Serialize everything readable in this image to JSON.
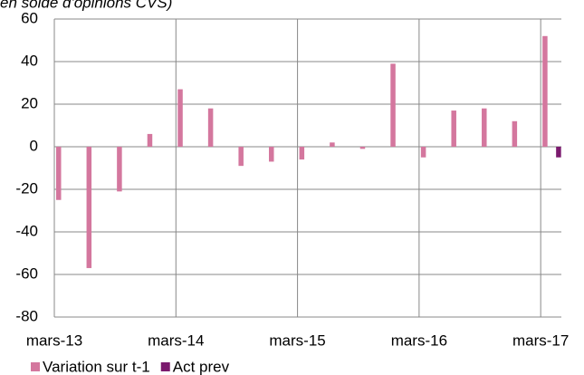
{
  "chart_data": {
    "type": "bar",
    "subtitle": "en solde d'opinions CVS)",
    "categories": [
      "mars-13",
      null,
      null,
      null,
      "mars-14",
      null,
      null,
      null,
      "mars-15",
      null,
      null,
      null,
      "mars-16",
      null,
      null,
      null,
      "mars-17"
    ],
    "series": [
      {
        "name": "Variation sur t-1",
        "color": "#d4779e",
        "values": [
          -25,
          -57,
          -21,
          6,
          27,
          18,
          -9,
          -7,
          -6,
          2,
          -1,
          39,
          -5,
          17,
          18,
          12,
          52
        ]
      },
      {
        "name": "Act prev",
        "color": "#7b1a6e",
        "values": [
          null,
          null,
          null,
          null,
          null,
          null,
          null,
          null,
          null,
          null,
          null,
          null,
          null,
          null,
          null,
          null,
          -5
        ]
      }
    ],
    "ylim": [
      -80,
      60
    ],
    "yticks": [
      -80,
      -60,
      -40,
      -20,
      0,
      20,
      40,
      60
    ],
    "grid": true
  }
}
